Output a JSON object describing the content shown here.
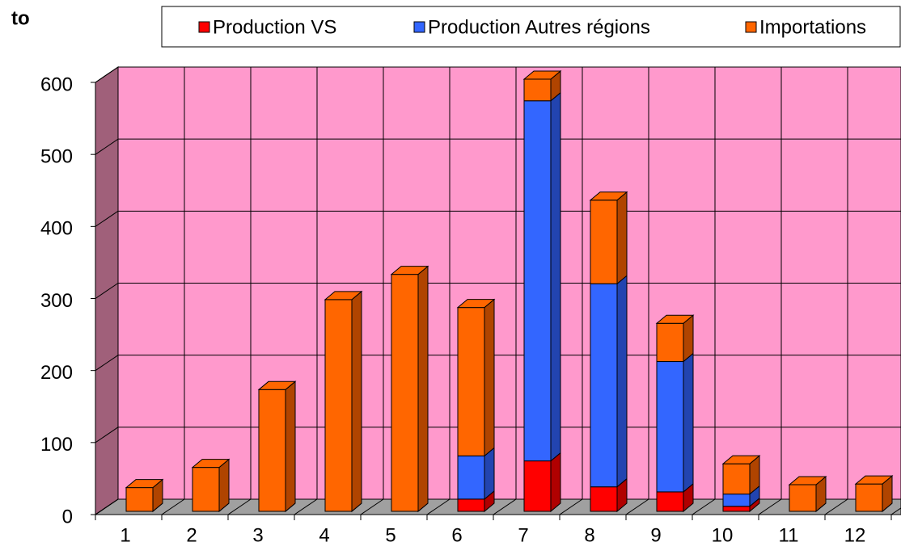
{
  "chart_data": {
    "type": "bar3d_stacked",
    "ylabel": "to",
    "categories": [
      "1",
      "2",
      "3",
      "4",
      "5",
      "6",
      "7",
      "8",
      "9",
      "10",
      "11",
      "12"
    ],
    "series": [
      {
        "name": "Production VS",
        "color": "#ff0000",
        "side": "#b00000",
        "values": [
          0,
          0,
          0,
          0,
          0,
          17,
          70,
          34,
          27,
          7,
          0,
          0
        ]
      },
      {
        "name": "Production Autres régions",
        "color": "#3366ff",
        "side": "#2244b0",
        "values": [
          0,
          0,
          0,
          0,
          0,
          60,
          500,
          282,
          181,
          17,
          0,
          0
        ]
      },
      {
        "name": "Importations",
        "color": "#ff6600",
        "side": "#b04400",
        "values": [
          33,
          61,
          169,
          294,
          329,
          206,
          30,
          116,
          53,
          42,
          37,
          38
        ]
      }
    ],
    "ylim": [
      0,
      600
    ],
    "yticks": [
      0,
      100,
      200,
      300,
      400,
      500,
      600
    ],
    "grid": true,
    "wall_color": "#ff99cc",
    "side_wall_color": "#a0607a",
    "floor_color": "#a0a0a0"
  }
}
